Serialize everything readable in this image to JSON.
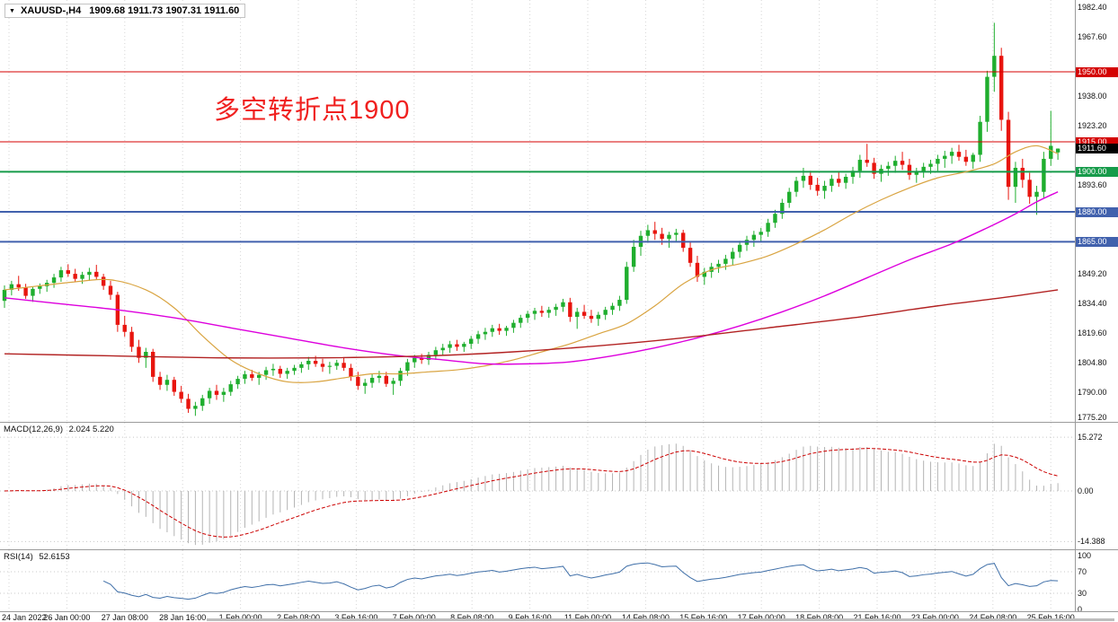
{
  "window": {
    "symbol_bar": {
      "symbol": "XAUUSD-,H4",
      "ohlc": "1909.68 1911.73 1907.31 1911.60"
    },
    "annotation": {
      "text": "多空转折点1900",
      "color": "#f0201f"
    }
  },
  "chart_data": {
    "type": "candlestick",
    "title": "XAUUSD-,H4",
    "ohlc_display": {
      "open": "1909.68",
      "high": "1911.73",
      "low": "1907.31",
      "close": "1911.60"
    },
    "ylim": [
      1775.0,
      1985.9
    ],
    "y_axis": [
      {
        "price": 1982.4,
        "label": "1982.40"
      },
      {
        "price": 1967.6,
        "label": "1967.60"
      },
      {
        "price": 1938.0,
        "label": "1938.00"
      },
      {
        "price": 1923.2,
        "label": "1923.20"
      },
      {
        "price": 1893.6,
        "label": "1893.60"
      },
      {
        "price": 1849.2,
        "label": "1849.20"
      },
      {
        "price": 1834.4,
        "label": "1834.40"
      },
      {
        "price": 1819.6,
        "label": "1819.60"
      },
      {
        "price": 1804.8,
        "label": "1804.80"
      },
      {
        "price": 1790.0,
        "label": "1790.00"
      },
      {
        "price": 1775.2,
        "label": "1775.20"
      }
    ],
    "price_lines": [
      {
        "price": 1950.0,
        "label": "1950.00",
        "color": "#d40000",
        "width": 1
      },
      {
        "price": 1915.0,
        "label": "1915.00",
        "color": "#d40000",
        "width": 1
      },
      {
        "price": 1900.0,
        "label": "1900.00",
        "color": "#169b4a",
        "width": 2
      },
      {
        "price": 1880.0,
        "label": "1880.00",
        "color": "#4161ad",
        "width": 2
      },
      {
        "price": 1865.0,
        "label": "1865.00",
        "color": "#4161ad",
        "width": 2
      }
    ],
    "current_price": {
      "price": 1911.6,
      "label": "1911.60",
      "color": "#000000"
    },
    "x_labels": [
      "24 Jan 2022",
      "26 Jan 00:00",
      "27 Jan 08:00",
      "28 Jan 16:00",
      "1 Feb 00:00",
      "2 Feb 08:00",
      "3 Feb 16:00",
      "7 Feb 00:00",
      "8 Feb 08:00",
      "9 Feb 16:00",
      "11 Feb 00:00",
      "14 Feb 08:00",
      "15 Feb 16:00",
      "17 Feb 00:00",
      "18 Feb 08:00",
      "21 Feb 16:00",
      "23 Feb 00:00",
      "24 Feb 08:00",
      "25 Feb 16:00"
    ],
    "candles": [
      [
        1835.5,
        1843.2,
        1832,
        1841
      ],
      [
        1841,
        1845.5,
        1838.2,
        1843.8
      ],
      [
        1843.8,
        1848,
        1840.5,
        1842.2
      ],
      [
        1842.2,
        1844,
        1836.5,
        1838
      ],
      [
        1838,
        1842.5,
        1835,
        1841.5
      ],
      [
        1841.5,
        1844.2,
        1839,
        1842.8
      ],
      [
        1842.8,
        1846,
        1840,
        1844.5
      ],
      [
        1844.5,
        1849,
        1842,
        1847.2
      ],
      [
        1847.2,
        1852.5,
        1845,
        1850.8
      ],
      [
        1850.8,
        1853.8,
        1847.5,
        1849
      ],
      [
        1849,
        1851.5,
        1844.8,
        1846.5
      ],
      [
        1846.5,
        1850,
        1844,
        1848.5
      ],
      [
        1848.5,
        1852,
        1845.5,
        1850
      ],
      [
        1850,
        1853.5,
        1846,
        1847.5
      ],
      [
        1847.5,
        1849,
        1841,
        1843
      ],
      [
        1843,
        1845.5,
        1836,
        1838.5
      ],
      [
        1838.5,
        1840,
        1820,
        1823.5
      ],
      [
        1823.5,
        1828,
        1817.5,
        1820
      ],
      [
        1820,
        1822.5,
        1810,
        1812.5
      ],
      [
        1812.5,
        1816,
        1804.5,
        1807
      ],
      [
        1807,
        1812,
        1802,
        1810
      ],
      [
        1810,
        1811.5,
        1795,
        1797.5
      ],
      [
        1797.5,
        1800,
        1791,
        1793.5
      ],
      [
        1793.5,
        1798.5,
        1790.5,
        1796
      ],
      [
        1796,
        1797.5,
        1788,
        1790
      ],
      [
        1790,
        1793,
        1784.5,
        1786.5
      ],
      [
        1786.5,
        1789,
        1779.5,
        1781.5
      ],
      [
        1781.5,
        1785,
        1778,
        1783
      ],
      [
        1783,
        1788.5,
        1780.5,
        1786.8
      ],
      [
        1786.8,
        1792,
        1784,
        1790.5
      ],
      [
        1790.5,
        1793.5,
        1786,
        1788.5
      ],
      [
        1788.5,
        1792,
        1785,
        1790
      ],
      [
        1790,
        1795.5,
        1788,
        1793.8
      ],
      [
        1793.8,
        1798,
        1791.5,
        1796.5
      ],
      [
        1796.5,
        1800.5,
        1794,
        1798.8
      ],
      [
        1798.8,
        1801,
        1795.5,
        1797
      ],
      [
        1797,
        1800,
        1793.5,
        1798.5
      ],
      [
        1798.5,
        1802.5,
        1796,
        1800.8
      ],
      [
        1800.8,
        1804,
        1798,
        1801.5
      ],
      [
        1801.5,
        1803,
        1797,
        1799
      ],
      [
        1799,
        1802,
        1796.5,
        1800.5
      ],
      [
        1800.5,
        1803.5,
        1798.5,
        1802
      ],
      [
        1802,
        1805,
        1799.5,
        1803.8
      ],
      [
        1803.8,
        1807.5,
        1801,
        1805.5
      ],
      [
        1805.5,
        1808,
        1802.5,
        1804
      ],
      [
        1804,
        1806.5,
        1800,
        1802.5
      ],
      [
        1802.5,
        1805,
        1799,
        1803
      ],
      [
        1803,
        1806,
        1801,
        1804.5
      ],
      [
        1804.5,
        1807,
        1800.5,
        1802
      ],
      [
        1802,
        1804,
        1795.5,
        1797.5
      ],
      [
        1797.5,
        1800,
        1791,
        1793
      ],
      [
        1793,
        1796.5,
        1789,
        1794.5
      ],
      [
        1794.5,
        1799,
        1792,
        1797
      ],
      [
        1797,
        1800.5,
        1794.5,
        1798
      ],
      [
        1798,
        1800,
        1792.5,
        1794
      ],
      [
        1794,
        1797,
        1788.5,
        1795.5
      ],
      [
        1795.5,
        1802,
        1793,
        1800.5
      ],
      [
        1800.5,
        1806.5,
        1798,
        1804.8
      ],
      [
        1804.8,
        1808.5,
        1802,
        1807
      ],
      [
        1807,
        1809,
        1804,
        1806
      ],
      [
        1806,
        1810,
        1803.5,
        1808.5
      ],
      [
        1808.5,
        1812.5,
        1806,
        1810.8
      ],
      [
        1810.8,
        1814,
        1808,
        1812
      ],
      [
        1812,
        1815.5,
        1809.5,
        1813.8
      ],
      [
        1813.8,
        1816,
        1810.5,
        1812.5
      ],
      [
        1812.5,
        1815,
        1810,
        1814
      ],
      [
        1814,
        1818,
        1811.5,
        1816.5
      ],
      [
        1816.5,
        1820.5,
        1814,
        1818.8
      ],
      [
        1818.8,
        1822,
        1816,
        1820
      ],
      [
        1820,
        1823.5,
        1817.5,
        1821.8
      ],
      [
        1821.8,
        1824,
        1818.5,
        1820.5
      ],
      [
        1820.5,
        1823,
        1818,
        1822
      ],
      [
        1822,
        1826,
        1819.5,
        1824.5
      ],
      [
        1824.5,
        1828.5,
        1822,
        1827
      ],
      [
        1827,
        1830.5,
        1824.5,
        1829
      ],
      [
        1829,
        1832,
        1826,
        1830.5
      ],
      [
        1830.5,
        1833,
        1827.5,
        1829.5
      ],
      [
        1829.5,
        1832.5,
        1827,
        1831
      ],
      [
        1831,
        1834,
        1828,
        1832.5
      ],
      [
        1832.5,
        1836.5,
        1830,
        1834.8
      ],
      [
        1834.8,
        1837,
        1825,
        1827.5
      ],
      [
        1827.5,
        1832,
        1821.5,
        1830
      ],
      [
        1830,
        1833.5,
        1826.5,
        1828
      ],
      [
        1828,
        1831,
        1824.5,
        1826.5
      ],
      [
        1826.5,
        1830,
        1823,
        1828.5
      ],
      [
        1828.5,
        1832.5,
        1826,
        1831
      ],
      [
        1831,
        1834.5,
        1828.5,
        1833
      ],
      [
        1833,
        1838,
        1830.5,
        1836
      ],
      [
        1836,
        1855,
        1834,
        1852.5
      ],
      [
        1852.5,
        1866,
        1850,
        1862.5
      ],
      [
        1862.5,
        1870.5,
        1858,
        1868
      ],
      [
        1868,
        1873.5,
        1864.5,
        1870.8
      ],
      [
        1870.8,
        1875,
        1866,
        1869
      ],
      [
        1869,
        1872,
        1863.5,
        1866.5
      ],
      [
        1866.5,
        1870,
        1862,
        1868.5
      ],
      [
        1868.5,
        1871.5,
        1865,
        1869.5
      ],
      [
        1869.5,
        1871,
        1860,
        1862
      ],
      [
        1862,
        1865,
        1852.5,
        1854.5
      ],
      [
        1854.5,
        1858,
        1845,
        1847.5
      ],
      [
        1847.5,
        1852,
        1843.5,
        1850
      ],
      [
        1850,
        1854.5,
        1847,
        1852.5
      ],
      [
        1852.5,
        1856,
        1849.5,
        1854
      ],
      [
        1854,
        1858.5,
        1851,
        1856.5
      ],
      [
        1856.5,
        1862,
        1853.5,
        1860
      ],
      [
        1860,
        1865.5,
        1857,
        1863.5
      ],
      [
        1863.5,
        1868,
        1860.5,
        1866
      ],
      [
        1866,
        1870.5,
        1862.5,
        1868.5
      ],
      [
        1868.5,
        1872,
        1865,
        1870
      ],
      [
        1870,
        1876.5,
        1867.5,
        1874.5
      ],
      [
        1874.5,
        1881,
        1872,
        1879
      ],
      [
        1879,
        1886.5,
        1876.5,
        1884.5
      ],
      [
        1884.5,
        1892,
        1882,
        1890
      ],
      [
        1890,
        1897.5,
        1887.5,
        1895.5
      ],
      [
        1895.5,
        1902,
        1892,
        1898
      ],
      [
        1898,
        1900.5,
        1891,
        1893.5
      ],
      [
        1893.5,
        1897,
        1888,
        1890.5
      ],
      [
        1890.5,
        1895.5,
        1886.5,
        1893
      ],
      [
        1893,
        1898.5,
        1890,
        1896.5
      ],
      [
        1896.5,
        1900,
        1892.5,
        1894.5
      ],
      [
        1894.5,
        1899,
        1891.5,
        1897.5
      ],
      [
        1897.5,
        1902.5,
        1894,
        1900.5
      ],
      [
        1900.5,
        1908.5,
        1897,
        1906
      ],
      [
        1906,
        1914,
        1902.5,
        1904.5
      ],
      [
        1904.5,
        1907,
        1896.5,
        1899
      ],
      [
        1899,
        1903.5,
        1895,
        1901.5
      ],
      [
        1901.5,
        1905,
        1898,
        1903
      ],
      [
        1903,
        1908,
        1899.5,
        1905.5
      ],
      [
        1905.5,
        1910,
        1901,
        1903.5
      ],
      [
        1903.5,
        1906.5,
        1896,
        1898.5
      ],
      [
        1898.5,
        1902,
        1894.5,
        1900
      ],
      [
        1900,
        1904.5,
        1897,
        1902.5
      ],
      [
        1902.5,
        1906,
        1899,
        1904
      ],
      [
        1904,
        1908.5,
        1900.5,
        1906.5
      ],
      [
        1906.5,
        1910.5,
        1902,
        1908
      ],
      [
        1908,
        1912,
        1904,
        1910
      ],
      [
        1910,
        1913.5,
        1905.5,
        1907.5
      ],
      [
        1907.5,
        1911,
        1903,
        1905
      ],
      [
        1905,
        1909.5,
        1901.5,
        1908.5
      ],
      [
        1908.5,
        1928,
        1905,
        1925
      ],
      [
        1925,
        1950.5,
        1920,
        1947.5
      ],
      [
        1947.5,
        1974.5,
        1940,
        1958
      ],
      [
        1958,
        1962,
        1920.5,
        1926
      ],
      [
        1926,
        1930,
        1886,
        1892.5
      ],
      [
        1892.5,
        1905,
        1884.5,
        1902
      ],
      [
        1902,
        1906.5,
        1892,
        1896
      ],
      [
        1896,
        1899.5,
        1884,
        1887.5
      ],
      [
        1887.5,
        1893,
        1878.5,
        1890
      ],
      [
        1890,
        1910,
        1887,
        1906.5
      ],
      [
        1906.5,
        1930.5,
        1903,
        1913
      ],
      [
        1909.7,
        1911.7,
        1906,
        1911.6
      ]
    ],
    "moving_averages": [
      {
        "name": "ma-fast",
        "color": "#d9a441",
        "width": 1.2,
        "points": [
          [
            0,
            1841
          ],
          [
            5,
            1843
          ],
          [
            10,
            1845
          ],
          [
            15,
            1846
          ],
          [
            20,
            1841
          ],
          [
            24,
            1832
          ],
          [
            28,
            1818
          ],
          [
            32,
            1806
          ],
          [
            36,
            1799
          ],
          [
            40,
            1795
          ],
          [
            44,
            1795
          ],
          [
            48,
            1797
          ],
          [
            52,
            1799
          ],
          [
            56,
            1799
          ],
          [
            60,
            1800
          ],
          [
            64,
            1801
          ],
          [
            68,
            1803
          ],
          [
            72,
            1806
          ],
          [
            76,
            1810
          ],
          [
            80,
            1814
          ],
          [
            84,
            1819
          ],
          [
            88,
            1824
          ],
          [
            92,
            1833
          ],
          [
            96,
            1844
          ],
          [
            100,
            1851
          ],
          [
            104,
            1854
          ],
          [
            108,
            1858
          ],
          [
            112,
            1864
          ],
          [
            116,
            1871
          ],
          [
            120,
            1879
          ],
          [
            124,
            1886
          ],
          [
            128,
            1892
          ],
          [
            132,
            1897
          ],
          [
            136,
            1900
          ],
          [
            140,
            1904
          ],
          [
            143,
            1910
          ],
          [
            146,
            1913
          ],
          [
            149,
            1909
          ]
        ]
      },
      {
        "name": "ma-mid",
        "color": "#dd00dd",
        "width": 1.4,
        "points": [
          [
            0,
            1837
          ],
          [
            8,
            1834
          ],
          [
            16,
            1831
          ],
          [
            24,
            1827
          ],
          [
            32,
            1822
          ],
          [
            40,
            1817
          ],
          [
            48,
            1812
          ],
          [
            56,
            1808
          ],
          [
            62,
            1806
          ],
          [
            68,
            1804
          ],
          [
            74,
            1804
          ],
          [
            80,
            1805
          ],
          [
            86,
            1808
          ],
          [
            92,
            1812
          ],
          [
            98,
            1817
          ],
          [
            104,
            1823
          ],
          [
            110,
            1830
          ],
          [
            116,
            1838
          ],
          [
            122,
            1847
          ],
          [
            128,
            1856
          ],
          [
            134,
            1864
          ],
          [
            139,
            1872
          ],
          [
            143,
            1879
          ],
          [
            146,
            1885
          ],
          [
            149,
            1890
          ]
        ]
      },
      {
        "name": "ma-slow",
        "color": "#b22222",
        "width": 1.4,
        "points": [
          [
            0,
            1809
          ],
          [
            15,
            1808
          ],
          [
            30,
            1807
          ],
          [
            45,
            1807
          ],
          [
            60,
            1808
          ],
          [
            72,
            1810
          ],
          [
            84,
            1813
          ],
          [
            96,
            1817
          ],
          [
            108,
            1822
          ],
          [
            120,
            1827
          ],
          [
            132,
            1833
          ],
          [
            141,
            1837
          ],
          [
            149,
            1841
          ]
        ]
      }
    ],
    "indicators": {
      "macd": {
        "label": "MACD(12,26,9)",
        "value": "2.024 5.220",
        "params": [
          12,
          26,
          9
        ],
        "axis": [
          {
            "v": 15.272,
            "label": "15.272"
          },
          {
            "v": 0,
            "label": "0.00"
          },
          {
            "v": -14.388,
            "label": "-14.388"
          }
        ],
        "histogram_color": "#b4b4b4",
        "signal_color": "#cc0000"
      },
      "rsi": {
        "label": "RSI(14)",
        "value": "52.6153",
        "period": 14,
        "axis": [
          {
            "v": 100,
            "label": "100"
          },
          {
            "v": 70,
            "label": "70"
          },
          {
            "v": 30,
            "label": "30"
          },
          {
            "v": 0,
            "label": "0"
          }
        ],
        "level_lines": [
          70,
          30
        ],
        "line_color": "#3f6fa8"
      }
    },
    "colors": {
      "bull": "#1fae2e",
      "bear": "#e8150e",
      "grid": "#d6d6d6",
      "axis_text": "#111111",
      "separator": "#9b9b9b",
      "background": "#ffffff"
    }
  }
}
